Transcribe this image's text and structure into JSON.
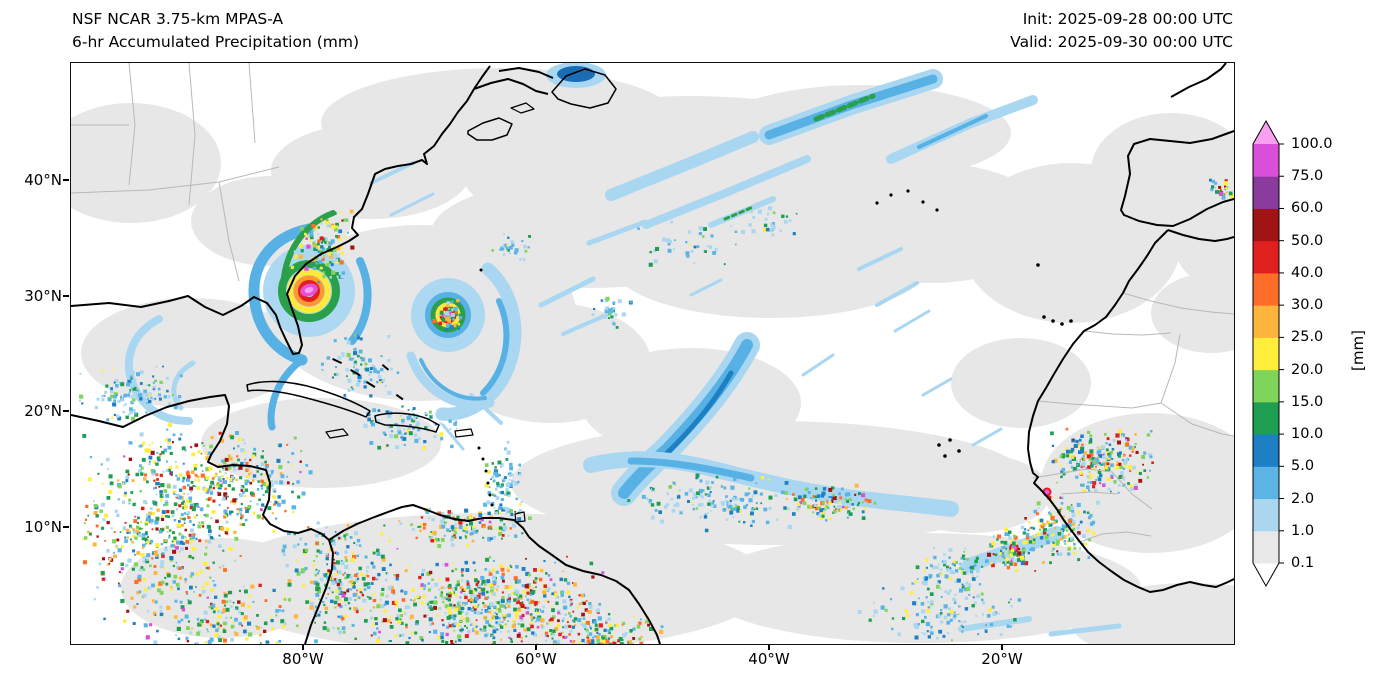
{
  "header": {
    "title_line1": "NSF NCAR 3.75-km MPAS-A",
    "title_line2": "6-hr Accumulated Precipitation (mm)",
    "init_label": "Init: 2025-09-28 00:00 UTC",
    "valid_label": "Valid: 2025-09-30 00:00 UTC"
  },
  "map": {
    "y_ticks": [
      "40°N",
      "30°N",
      "20°N",
      "10°N"
    ],
    "x_ticks": [
      "80°W",
      "60°W",
      "40°W",
      "20°W"
    ]
  },
  "colorbar": {
    "unit_label": "[mm]",
    "ticks": [
      "100.0",
      "75.0",
      "60.0",
      "50.0",
      "40.0",
      "30.0",
      "25.0",
      "20.0",
      "15.0",
      "10.0",
      "5.0",
      "2.0",
      "1.0",
      "0.1"
    ],
    "segment_colors_bottom_to_top": [
      "#e8e8e8",
      "#aad6f0",
      "#5cb3e6",
      "#1d7fc4",
      "#1e9e50",
      "#7fd45a",
      "#ffee3c",
      "#ffb53c",
      "#ff6e28",
      "#e01f1f",
      "#a01414",
      "#8b3a9e",
      "#d94fd9"
    ],
    "over_color": "#f9a0f0",
    "under_color": "#ffffff"
  }
}
